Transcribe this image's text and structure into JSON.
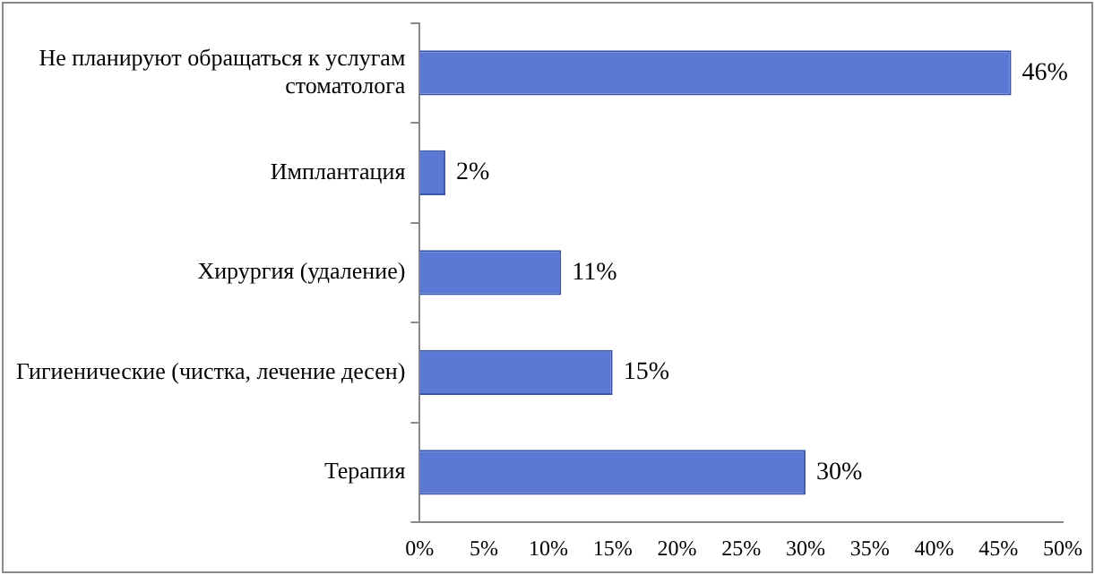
{
  "chart_data": {
    "type": "bar",
    "orientation": "horizontal",
    "categories": [
      "Не планируют обращаться к услугам стоматолога",
      "Имплантация",
      "Хирургия (удаление)",
      "Гигиенические (чистка, лечение десен)",
      "Терапия"
    ],
    "values": [
      46,
      2,
      11,
      15,
      30
    ],
    "value_labels": [
      "46%",
      "2%",
      "11%",
      "15%",
      "30%"
    ],
    "color": "#5b78d4",
    "xlim": [
      0,
      50
    ],
    "xticks": [
      {
        "value": 0,
        "label": "0%"
      },
      {
        "value": 5,
        "label": "5%"
      },
      {
        "value": 10,
        "label": "10%"
      },
      {
        "value": 15,
        "label": "15%"
      },
      {
        "value": 20,
        "label": "20%"
      },
      {
        "value": 25,
        "label": "25%"
      },
      {
        "value": 30,
        "label": "30%"
      },
      {
        "value": 35,
        "label": "35%"
      },
      {
        "value": 40,
        "label": "40%"
      },
      {
        "value": 45,
        "label": "45%"
      },
      {
        "value": 50,
        "label": "50%"
      }
    ],
    "grid": false,
    "legend": false
  }
}
